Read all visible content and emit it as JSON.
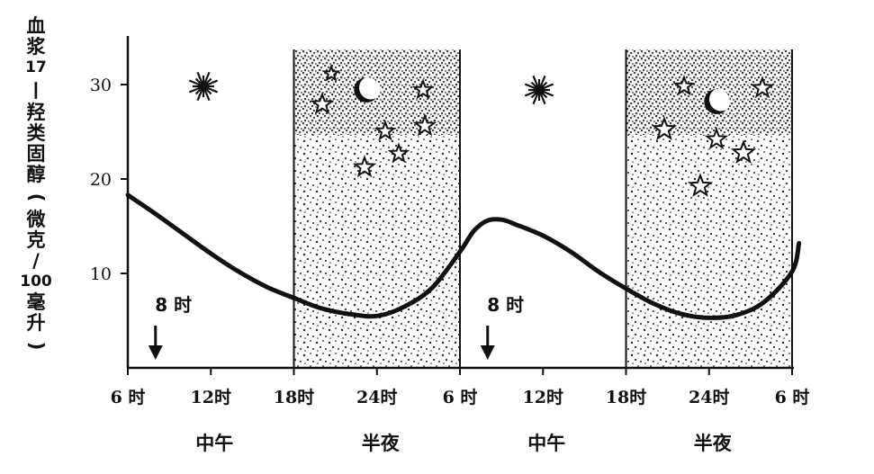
{
  "chart_data": {
    "type": "line",
    "ylabel": "血浆17—羟类固醇(微克/100毫升)",
    "ylabel_chars": [
      "血",
      "浆",
      "17",
      "—",
      "羟",
      "类",
      "固",
      "醇",
      "(",
      "微",
      "克",
      "/",
      "100",
      "毫",
      "升",
      ")"
    ],
    "yticks": [
      "10",
      "20",
      "30"
    ],
    "ylim": [
      0,
      35
    ],
    "xticks": [
      "6 时",
      "12时",
      "18时",
      "24时",
      "6 时",
      "12时",
      "18时",
      "24时",
      "6 时"
    ],
    "x_hours": [
      6,
      12,
      18,
      24,
      30,
      36,
      42,
      48,
      54
    ],
    "period_labels": [
      {
        "text": "中午",
        "hour": 12
      },
      {
        "text": "半夜",
        "hour": 24
      },
      {
        "text": "中午",
        "hour": 36
      },
      {
        "text": "半夜",
        "hour": 48
      }
    ],
    "night_bands": [
      [
        18,
        30
      ],
      [
        42,
        54
      ]
    ],
    "markers": [
      {
        "text": "8 时",
        "hour": 8
      },
      {
        "text": "8 时",
        "hour": 32
      }
    ],
    "series": [
      {
        "x": [
          6,
          8,
          10,
          12,
          14,
          16,
          18,
          20,
          22,
          24,
          26,
          28,
          30,
          31,
          32,
          33,
          34,
          36,
          38,
          40,
          42,
          44,
          46,
          48,
          50,
          52,
          54,
          54.5
        ],
        "y": [
          18.3,
          16.3,
          14.2,
          12.1,
          10.2,
          8.6,
          7.4,
          6.3,
          5.7,
          5.5,
          6.5,
          8.5,
          12.3,
          14.5,
          15.6,
          15.7,
          15.2,
          14.0,
          12.3,
          10.2,
          8.4,
          6.8,
          5.7,
          5.3,
          5.6,
          7.0,
          10.2,
          13.2
        ]
      }
    ],
    "grid": false
  }
}
